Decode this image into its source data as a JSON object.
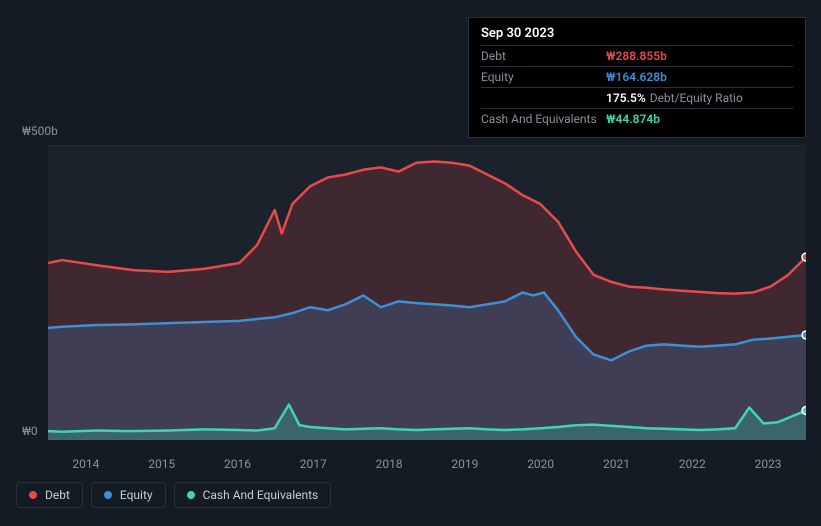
{
  "tooltip": {
    "date": "Sep 30 2023",
    "rows": [
      {
        "label": "Debt",
        "value": "₩288.855b",
        "color": "#e84a4a",
        "suffix": ""
      },
      {
        "label": "Equity",
        "value": "₩164.628b",
        "color": "#3d8fd6",
        "suffix": ""
      },
      {
        "label": "",
        "value": "175.5%",
        "color": "#ffffff",
        "suffix": "Debt/Equity Ratio"
      },
      {
        "label": "Cash And Equivalents",
        "value": "₩44.874b",
        "color": "#3dd6b0",
        "suffix": ""
      }
    ]
  },
  "chart": {
    "type": "area",
    "background": "#151b24",
    "plot_background": "#1b222c",
    "grid_color": "#2a2f38",
    "ylim": [
      0,
      500
    ],
    "y_ticks": [
      {
        "v": 500,
        "label": "₩500b"
      },
      {
        "v": 0,
        "label": "₩0"
      }
    ],
    "x_labels": [
      "2014",
      "2015",
      "2016",
      "2017",
      "2018",
      "2019",
      "2020",
      "2021",
      "2022",
      "2023"
    ],
    "x_domain": [
      2013.3,
      2024.0
    ],
    "series": {
      "debt": {
        "name": "Debt",
        "color": "#e84a4a",
        "fill_opacity": 0.18,
        "line_width": 2.5,
        "data": [
          [
            2013.3,
            300
          ],
          [
            2013.5,
            305
          ],
          [
            2014.0,
            296
          ],
          [
            2014.5,
            288
          ],
          [
            2015.0,
            285
          ],
          [
            2015.5,
            290
          ],
          [
            2016.0,
            300
          ],
          [
            2016.25,
            330
          ],
          [
            2016.5,
            390
          ],
          [
            2016.6,
            350
          ],
          [
            2016.75,
            400
          ],
          [
            2017.0,
            430
          ],
          [
            2017.25,
            445
          ],
          [
            2017.5,
            450
          ],
          [
            2017.75,
            458
          ],
          [
            2018.0,
            462
          ],
          [
            2018.25,
            455
          ],
          [
            2018.5,
            470
          ],
          [
            2018.75,
            472
          ],
          [
            2019.0,
            470
          ],
          [
            2019.25,
            465
          ],
          [
            2019.5,
            450
          ],
          [
            2019.75,
            435
          ],
          [
            2020.0,
            415
          ],
          [
            2020.25,
            400
          ],
          [
            2020.5,
            370
          ],
          [
            2020.75,
            320
          ],
          [
            2021.0,
            280
          ],
          [
            2021.25,
            268
          ],
          [
            2021.5,
            260
          ],
          [
            2021.75,
            258
          ],
          [
            2022.0,
            255
          ],
          [
            2022.25,
            253
          ],
          [
            2022.5,
            251
          ],
          [
            2022.75,
            249
          ],
          [
            2023.0,
            248
          ],
          [
            2023.25,
            250
          ],
          [
            2023.5,
            260
          ],
          [
            2023.75,
            280
          ],
          [
            2024.0,
            310
          ]
        ]
      },
      "equity": {
        "name": "Equity",
        "color": "#3d8fd6",
        "fill_opacity": 0.22,
        "line_width": 2.5,
        "data": [
          [
            2013.3,
            190
          ],
          [
            2013.5,
            192
          ],
          [
            2014.0,
            195
          ],
          [
            2014.5,
            196
          ],
          [
            2015.0,
            198
          ],
          [
            2015.5,
            200
          ],
          [
            2016.0,
            202
          ],
          [
            2016.25,
            205
          ],
          [
            2016.5,
            208
          ],
          [
            2016.75,
            215
          ],
          [
            2017.0,
            225
          ],
          [
            2017.25,
            220
          ],
          [
            2017.5,
            230
          ],
          [
            2017.75,
            245
          ],
          [
            2018.0,
            225
          ],
          [
            2018.25,
            235
          ],
          [
            2018.5,
            232
          ],
          [
            2018.75,
            230
          ],
          [
            2019.0,
            228
          ],
          [
            2019.25,
            225
          ],
          [
            2019.5,
            230
          ],
          [
            2019.75,
            235
          ],
          [
            2020.0,
            250
          ],
          [
            2020.15,
            245
          ],
          [
            2020.3,
            250
          ],
          [
            2020.5,
            220
          ],
          [
            2020.75,
            175
          ],
          [
            2021.0,
            145
          ],
          [
            2021.25,
            135
          ],
          [
            2021.5,
            150
          ],
          [
            2021.75,
            160
          ],
          [
            2022.0,
            162
          ],
          [
            2022.25,
            160
          ],
          [
            2022.5,
            158
          ],
          [
            2022.75,
            160
          ],
          [
            2023.0,
            162
          ],
          [
            2023.25,
            170
          ],
          [
            2023.5,
            172
          ],
          [
            2023.75,
            175
          ],
          [
            2024.0,
            178
          ]
        ]
      },
      "cash": {
        "name": "Cash And Equivalents",
        "color": "#3dd6b0",
        "fill_opacity": 0.25,
        "line_width": 2.5,
        "data": [
          [
            2013.3,
            15
          ],
          [
            2013.5,
            14
          ],
          [
            2014.0,
            16
          ],
          [
            2014.5,
            15
          ],
          [
            2015.0,
            16
          ],
          [
            2015.5,
            18
          ],
          [
            2016.0,
            17
          ],
          [
            2016.25,
            16
          ],
          [
            2016.5,
            20
          ],
          [
            2016.7,
            60
          ],
          [
            2016.85,
            25
          ],
          [
            2017.0,
            22
          ],
          [
            2017.25,
            20
          ],
          [
            2017.5,
            18
          ],
          [
            2017.75,
            19
          ],
          [
            2018.0,
            20
          ],
          [
            2018.25,
            18
          ],
          [
            2018.5,
            17
          ],
          [
            2018.75,
            18
          ],
          [
            2019.0,
            19
          ],
          [
            2019.25,
            20
          ],
          [
            2019.5,
            18
          ],
          [
            2019.75,
            17
          ],
          [
            2020.0,
            18
          ],
          [
            2020.25,
            20
          ],
          [
            2020.5,
            22
          ],
          [
            2020.75,
            25
          ],
          [
            2021.0,
            26
          ],
          [
            2021.25,
            24
          ],
          [
            2021.5,
            22
          ],
          [
            2021.75,
            20
          ],
          [
            2022.0,
            19
          ],
          [
            2022.25,
            18
          ],
          [
            2022.5,
            17
          ],
          [
            2022.75,
            18
          ],
          [
            2023.0,
            20
          ],
          [
            2023.2,
            55
          ],
          [
            2023.4,
            28
          ],
          [
            2023.6,
            30
          ],
          [
            2023.8,
            40
          ],
          [
            2024.0,
            50
          ]
        ]
      }
    }
  },
  "legend": [
    {
      "label": "Debt",
      "color": "#e84a4a"
    },
    {
      "label": "Equity",
      "color": "#3d8fd6"
    },
    {
      "label": "Cash And Equivalents",
      "color": "#3dd6b0"
    }
  ]
}
